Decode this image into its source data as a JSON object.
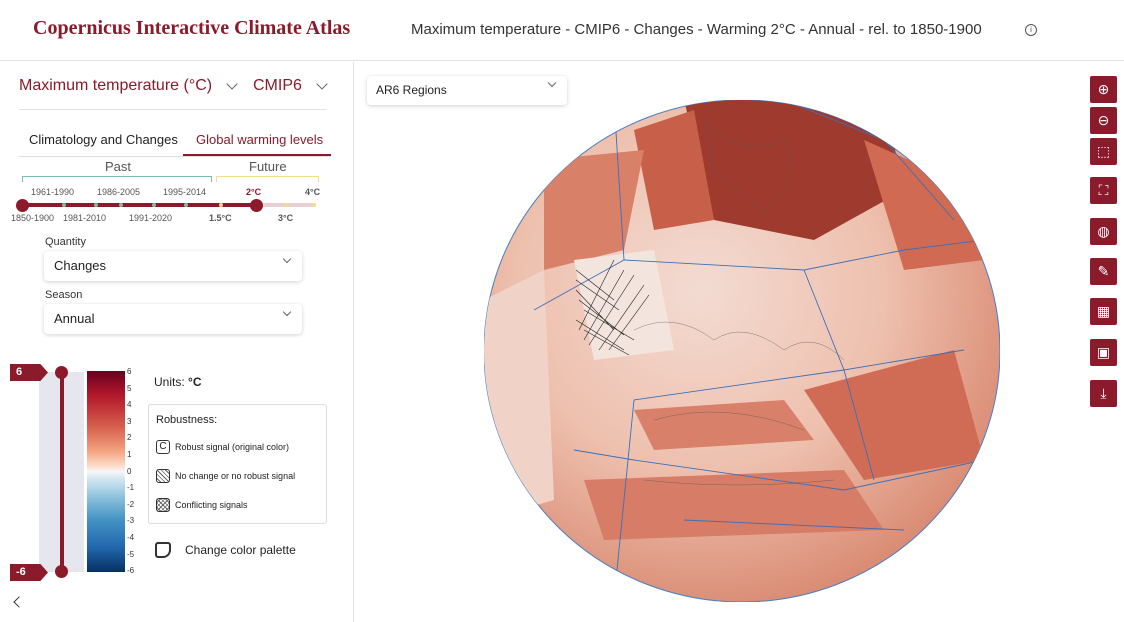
{
  "header": {
    "app_title": "Copernicus Interactive Climate Atlas",
    "map_title": "Maximum temperature - CMIP6 - Changes - Warming 2°C - Annual - rel. to 1850-1900",
    "info_icon": "i"
  },
  "sidebar": {
    "variable": "Maximum temperature (°C)",
    "dataset": "CMIP6",
    "tabs": [
      "Climatology and Changes",
      "Global warming levels"
    ],
    "active_tab": 1,
    "past_label": "Past",
    "future_label": "Future",
    "timeline_top": [
      "1961-1990",
      "1986-2005",
      "1995-2014",
      "2°C",
      "4°C"
    ],
    "timeline_bottom": [
      "1850-1900",
      "1981-2010",
      "1991-2020",
      "1.5°C",
      "3°C"
    ],
    "quantity_label": "Quantity",
    "quantity_value": "Changes",
    "season_label": "Season",
    "season_value": "Annual"
  },
  "legend": {
    "max_tag": "6",
    "min_tag": "-6",
    "ticks": [
      "6",
      "5",
      "4",
      "3",
      "2",
      "1",
      "0",
      "-1",
      "-2",
      "-3",
      "-4",
      "-5",
      "-6"
    ],
    "units_label": "Units:",
    "units_value": "°C",
    "robustness_title": "Robustness:",
    "robust_symbol": "C",
    "robust_items": [
      "Robust signal (original color)",
      "No change or no robust signal",
      "Conflicting signals"
    ],
    "palette_button": "Change color palette"
  },
  "map": {
    "region_select": "AR6 Regions"
  },
  "toolbar": [
    "zoom-in",
    "zoom-out",
    "select-area",
    "fullscreen",
    "globe",
    "pin",
    "checkerboard",
    "image",
    "download"
  ],
  "colors": {
    "brand": "#8b1a2b",
    "past_bracket": "#7fbfa8",
    "future_bracket": "#f3dd8a"
  }
}
